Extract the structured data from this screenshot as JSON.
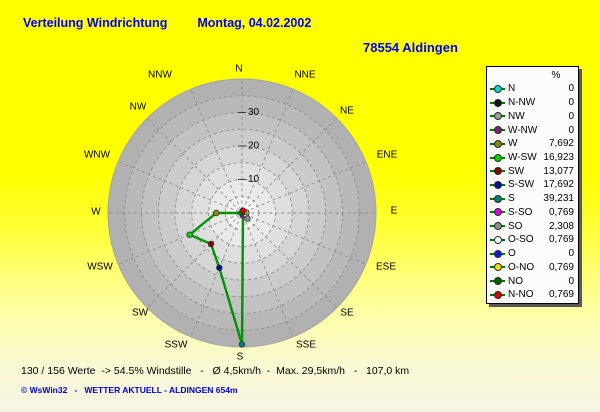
{
  "header": {
    "title": "Verteilung Windrichtung",
    "date": "Montag, 04.02.2002",
    "station": "78554 Aldingen"
  },
  "status_line": "130 / 156 Werte  -> 54.5% Windstille   -   Ø 4,5km/h  -  Max. 29,5km/h   -   107,0 km",
  "footer": "© WsWin32   -   WETTER AKTUELL - ALDINGEN 654m",
  "colors": {
    "title_text": "#0000F5",
    "station_text": "#0000F5",
    "footer_text": "#0000D2",
    "status_text": "#000000",
    "polygon_line": "#009300",
    "legend_line": "#007800",
    "grid": "#8C8C8C",
    "disk_edge": "#A2A2A2",
    "background_top": "#FFFF00",
    "background_bottom": "#F5F5E4"
  },
  "legend": {
    "header_unit": "%"
  },
  "chart_data": {
    "type": "radar",
    "title": "Verteilung Windrichtung",
    "subtitle": "Montag, 04.02.2002",
    "units": "%",
    "orientation": "N at top, angles clockwise",
    "radial_axis": {
      "ticks": [
        10,
        20,
        30
      ],
      "ring_step": 5,
      "max": 40,
      "center_label": "0"
    },
    "grid": "dashed rings every 5% and 16 dashed spokes every 22.5°",
    "legend_position": "right",
    "series": [
      {
        "label": "N",
        "compass": "N",
        "angle_deg": 0.0,
        "value": 0,
        "display": "0",
        "marker_color": "#00DADA"
      },
      {
        "label": "N-NW",
        "compass": "NNW",
        "angle_deg": 337.5,
        "value": 0,
        "display": "0",
        "marker_color": "#111111"
      },
      {
        "label": "NW",
        "compass": "NW",
        "angle_deg": 315.0,
        "value": 0,
        "display": "0",
        "marker_color": "#9A9A9A"
      },
      {
        "label": "W-NW",
        "compass": "WNW",
        "angle_deg": 292.5,
        "value": 0,
        "display": "0",
        "marker_color": "#7E2280"
      },
      {
        "label": "W",
        "compass": "W",
        "angle_deg": 270.0,
        "value": 7.692,
        "display": "7,692",
        "marker_color": "#8A8A00"
      },
      {
        "label": "W-SW",
        "compass": "WSW",
        "angle_deg": 247.5,
        "value": 16.923,
        "display": "16,923",
        "marker_color": "#00D400"
      },
      {
        "label": "SW",
        "compass": "SW",
        "angle_deg": 225.0,
        "value": 13.077,
        "display": "13,077",
        "marker_color": "#8B0000"
      },
      {
        "label": "S-SW",
        "compass": "SSW",
        "angle_deg": 202.5,
        "value": 17.692,
        "display": "17,692",
        "marker_color": "#000F9E"
      },
      {
        "label": "S",
        "compass": "S",
        "angle_deg": 180.0,
        "value": 39.231,
        "display": "39,231",
        "marker_color": "#007F7F"
      },
      {
        "label": "S-SO",
        "compass": "SSE",
        "angle_deg": 157.5,
        "value": 0.769,
        "display": "0,769",
        "marker_color": "#E400E4"
      },
      {
        "label": "SO",
        "compass": "SE",
        "angle_deg": 135.0,
        "value": 2.308,
        "display": "2,308",
        "marker_color": "#8F8F8F"
      },
      {
        "label": "O-SO",
        "compass": "ESE",
        "angle_deg": 112.5,
        "value": 0.769,
        "display": "0,769",
        "marker_color": "#FFFFFF"
      },
      {
        "label": "O",
        "compass": "E",
        "angle_deg": 90.0,
        "value": 0,
        "display": "0",
        "marker_color": "#1414E0"
      },
      {
        "label": "O-NO",
        "compass": "ENE",
        "angle_deg": 67.5,
        "value": 0.769,
        "display": "0,769",
        "marker_color": "#EFDF00"
      },
      {
        "label": "NO",
        "compass": "NE",
        "angle_deg": 45.0,
        "value": 0,
        "display": "0",
        "marker_color": "#006400"
      },
      {
        "label": "N-NO",
        "compass": "NNE",
        "angle_deg": 22.5,
        "value": 0.769,
        "display": "0,769",
        "marker_color": "#DE0000"
      }
    ]
  }
}
